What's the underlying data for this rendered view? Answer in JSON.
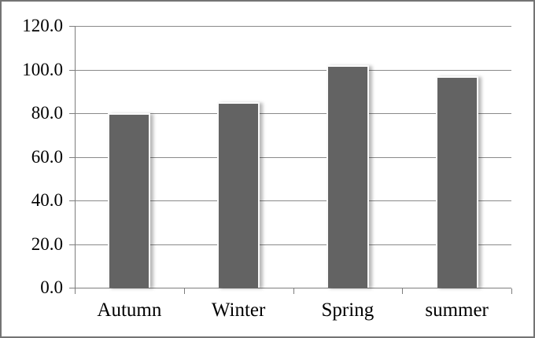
{
  "chart_data": {
    "type": "bar",
    "title": "",
    "xlabel": "",
    "ylabel": "",
    "categories": [
      "Autumn",
      "Winter",
      "Spring",
      "summer"
    ],
    "values": [
      80,
      85,
      102,
      97
    ],
    "series_name": "",
    "ylim": [
      0,
      120
    ],
    "ytick_step": 20,
    "ytick_labels": [
      "0.0",
      "20.0",
      "40.0",
      "60.0",
      "80.0",
      "100.0",
      "120.0"
    ],
    "grid": true,
    "legend_position": "none",
    "colors": {
      "bar_fill": "#636363",
      "bar_edge": "#fafafa",
      "gridline": "#8a8a8a",
      "axis": "#7d7d7d",
      "text": "#000000",
      "frame_border": "#747474",
      "background": "#ffffff"
    }
  }
}
